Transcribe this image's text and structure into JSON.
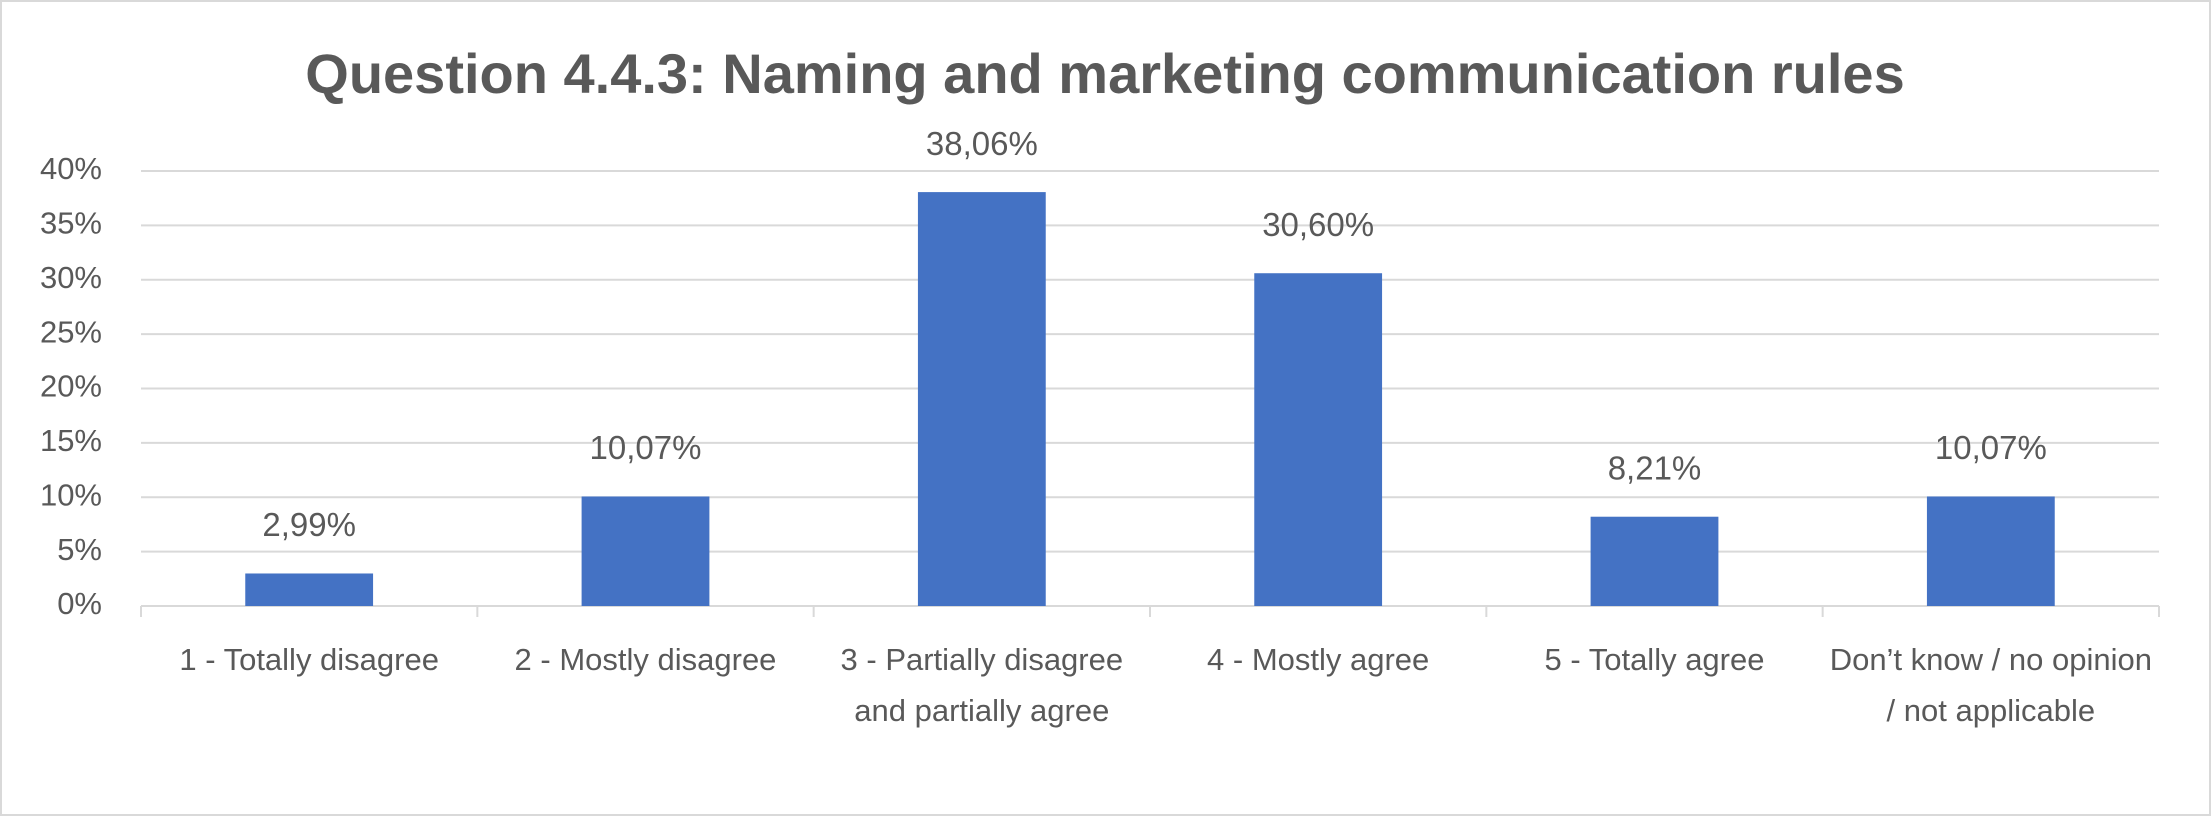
{
  "chart_data": {
    "type": "bar",
    "title": "Question 4.4.3: Naming and marketing communication rules",
    "categories": [
      "1 - Totally disagree",
      "2 - Mostly disagree",
      "3 - Partially disagree and partially agree",
      "4 - Mostly agree",
      "5 - Totally agree",
      "Don’t know / no opinion / not applicable"
    ],
    "values": [
      2.99,
      10.07,
      38.06,
      30.6,
      8.21,
      10.07
    ],
    "value_labels": [
      "2,99%",
      "10,07%",
      "38,06%",
      "30,60%",
      "8,21%",
      "10,07%"
    ],
    "color": "#4472c4",
    "ylim": [
      0,
      40
    ],
    "yticks": [
      {
        "value": 0,
        "label": "0%"
      },
      {
        "value": 5,
        "label": "5%"
      },
      {
        "value": 10,
        "label": "10%"
      },
      {
        "value": 15,
        "label": "15%"
      },
      {
        "value": 20,
        "label": "20%"
      },
      {
        "value": 25,
        "label": "25%"
      },
      {
        "value": 30,
        "label": "30%"
      },
      {
        "value": 35,
        "label": "35%"
      },
      {
        "value": 40,
        "label": "40%"
      }
    ],
    "grid": true
  }
}
